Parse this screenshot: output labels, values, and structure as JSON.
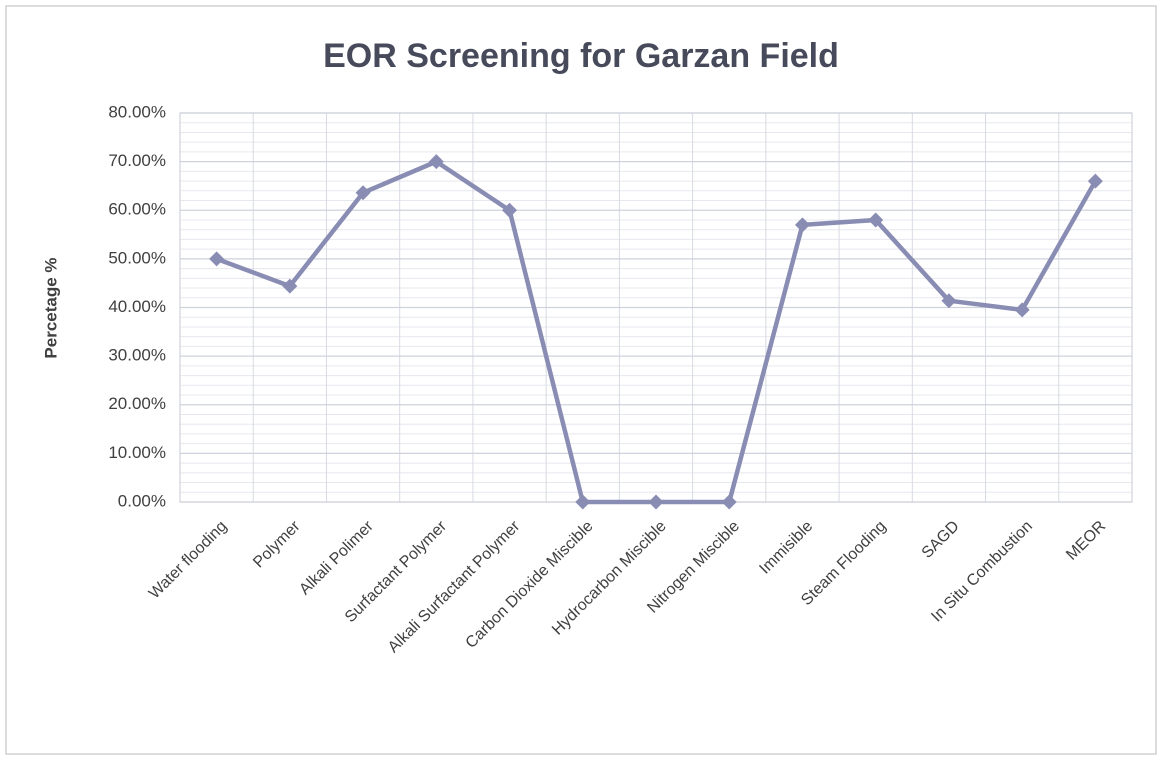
{
  "chart_data": {
    "type": "line",
    "title": "EOR Screening for Garzan Field",
    "y_axis_label": "Percetage %",
    "categories": [
      "Water flooding",
      "Polymer",
      "Alkali Polimer",
      "Surfactant Polymer",
      "Alkali Surfactant Polymer",
      "Carbon Dioxide Miscible",
      "Hydrocarbon Miscible",
      "Nitrogen Miscible",
      "Immisible",
      "Steam Flooding",
      "SAGD",
      "In Situ Combustion",
      "MEOR"
    ],
    "series": [
      {
        "name": "EOR Screening",
        "color": "#8a8db3",
        "values": [
          50,
          44.4,
          63.6,
          70,
          60,
          0,
          0,
          0,
          57,
          58,
          41.4,
          39.5,
          66
        ]
      }
    ],
    "ylim": [
      0,
      80
    ],
    "yticks": [
      {
        "value": 0,
        "label": "0.00%"
      },
      {
        "value": 10,
        "label": "10.00%"
      },
      {
        "value": 20,
        "label": "20.00%"
      },
      {
        "value": 30,
        "label": "30.00%"
      },
      {
        "value": 40,
        "label": "40.00%"
      },
      {
        "value": 50,
        "label": "50.00%"
      },
      {
        "value": 60,
        "label": "60.00%"
      },
      {
        "value": 70,
        "label": "70.00%"
      },
      {
        "value": 80,
        "label": "80.00%"
      }
    ],
    "minor_yticks": [
      2,
      4,
      6,
      8,
      12,
      14,
      16,
      18,
      22,
      24,
      26,
      28,
      32,
      34,
      36,
      38,
      42,
      44,
      46,
      48,
      52,
      54,
      56,
      58,
      62,
      64,
      66,
      68,
      72,
      74,
      76,
      78
    ],
    "grid": true
  }
}
